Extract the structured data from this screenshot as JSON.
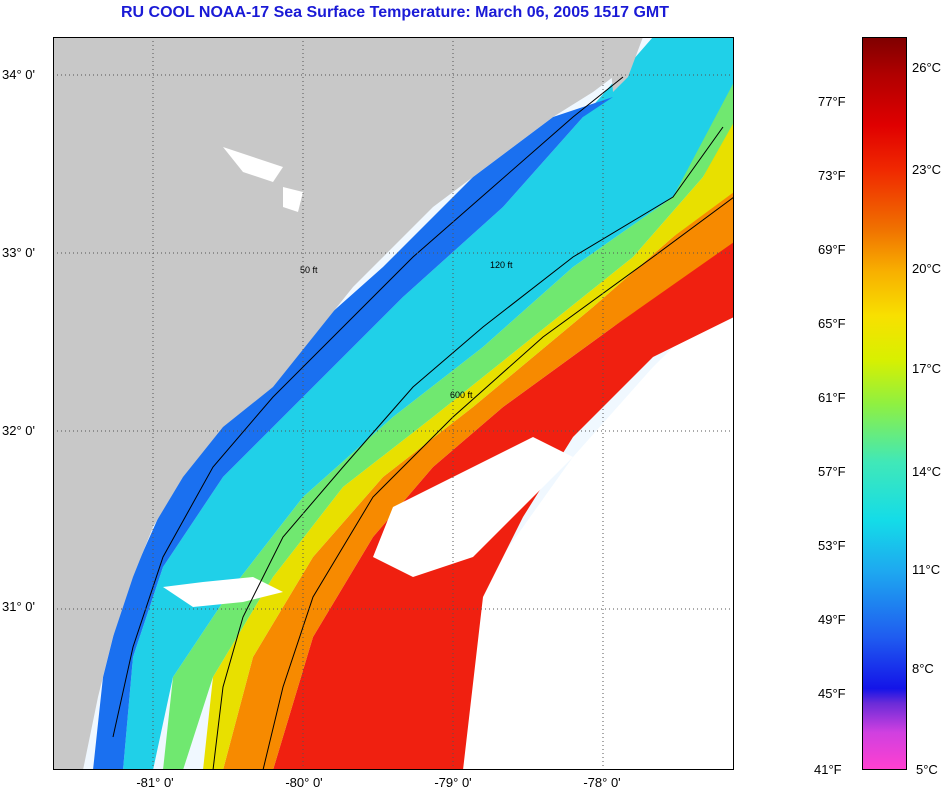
{
  "title": "RU COOL  NOAA-17  Sea Surface Temperature:  March 06, 2005 1517 GMT",
  "map": {
    "lat_ticks": [
      "34° 0'",
      "33° 0'",
      "32° 0'",
      "31° 0'"
    ],
    "lon_ticks": [
      "-81° 0'",
      "-80° 0'",
      "-79° 0'",
      "-78° 0'"
    ],
    "lat_range": [
      30.1,
      34.2
    ],
    "lon_range": [
      -81.65,
      -77.1
    ],
    "contours": [
      {
        "label": "50 ft"
      },
      {
        "label": "120 ft"
      },
      {
        "label": "600 ft"
      }
    ],
    "colors": {
      "land": "#c8c8c8",
      "cloud_no_data": "#ffffff",
      "gridline": "#555555",
      "contour": "#000000"
    }
  },
  "colorbar": {
    "fahrenheit_labels": [
      "77°F",
      "73°F",
      "69°F",
      "65°F",
      "61°F",
      "57°F",
      "53°F",
      "49°F",
      "45°F",
      "41°F"
    ],
    "celsius_labels": [
      "26°C",
      "23°C",
      "20°C",
      "17°C",
      "14°C",
      "11°C",
      "8°C",
      "5°C"
    ],
    "range_celsius": [
      5,
      27.5
    ]
  }
}
